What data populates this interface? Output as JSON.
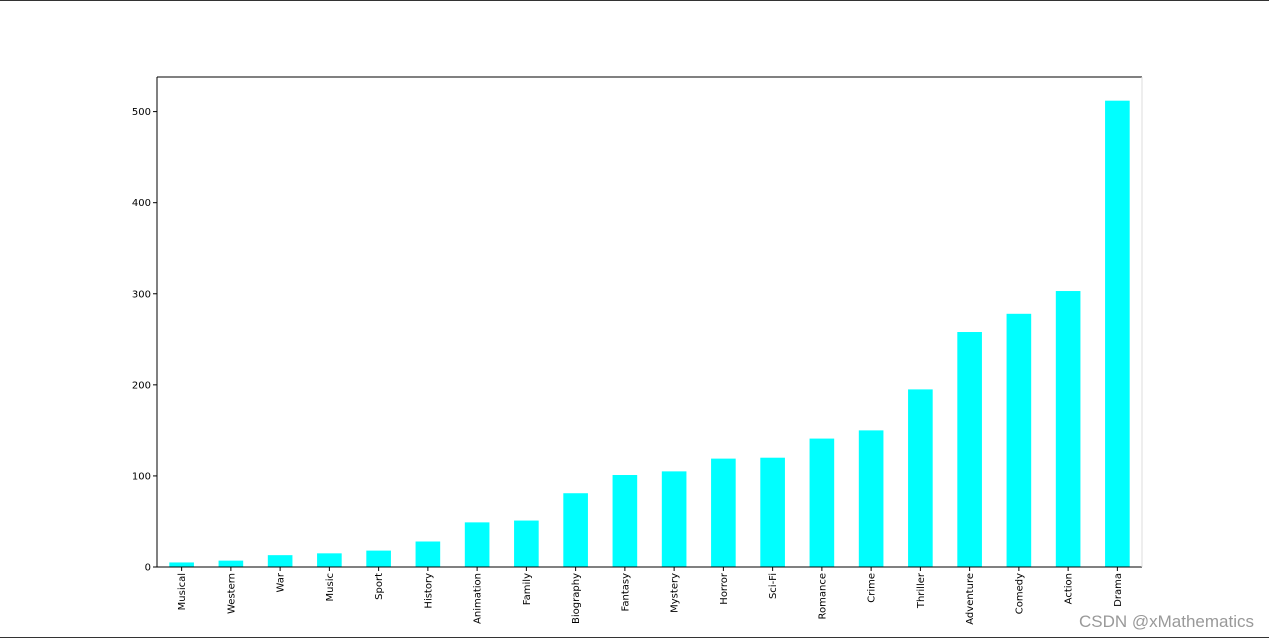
{
  "chart_data": {
    "type": "bar",
    "categories": [
      "Musical",
      "Western",
      "War",
      "Music",
      "Sport",
      "History",
      "Animation",
      "Family",
      "Biography",
      "Fantasy",
      "Mystery",
      "Horror",
      "Sci-Fi",
      "Romance",
      "Crime",
      "Thriller",
      "Adventure",
      "Comedy",
      "Action",
      "Drama"
    ],
    "values": [
      5,
      7,
      13,
      15,
      18,
      28,
      49,
      51,
      81,
      101,
      105,
      119,
      120,
      141,
      150,
      195,
      258,
      278,
      303,
      512
    ],
    "color": "#00ffff",
    "ylim": [
      0,
      538
    ],
    "yticks": [
      0,
      100,
      200,
      300,
      400,
      500
    ],
    "grid": false
  },
  "watermark": "CSDN @xMathematics"
}
